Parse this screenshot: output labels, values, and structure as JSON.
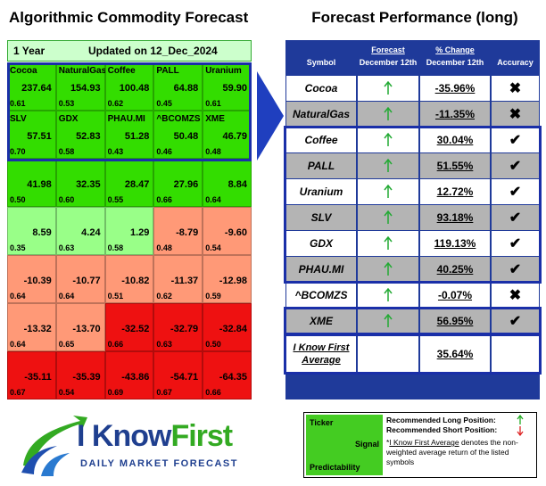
{
  "left": {
    "title": "Algorithmic Commodity Forecast",
    "horizon": "1 Year",
    "updated": "Updated on 12_Dec_2024",
    "rows": [
      [
        {
          "name": "Cocoa",
          "signal": "237.64",
          "predictability": "0.61",
          "color": "#33dd00"
        },
        {
          "name": "NaturalGas",
          "signal": "154.93",
          "predictability": "0.53",
          "color": "#33dd00"
        },
        {
          "name": "Coffee",
          "signal": "100.48",
          "predictability": "0.62",
          "color": "#33dd00"
        },
        {
          "name": "PALL",
          "signal": "64.88",
          "predictability": "0.45",
          "color": "#33dd00"
        },
        {
          "name": "Uranium",
          "signal": "59.90",
          "predictability": "0.61",
          "color": "#33dd00"
        }
      ],
      [
        {
          "name": "SLV",
          "signal": "57.51",
          "predictability": "0.70",
          "color": "#33dd00"
        },
        {
          "name": "GDX",
          "signal": "52.83",
          "predictability": "0.58",
          "color": "#33dd00"
        },
        {
          "name": "PHAU.MI",
          "signal": "51.28",
          "predictability": "0.43",
          "color": "#33dd00"
        },
        {
          "name": "^BCOMZS",
          "signal": "50.48",
          "predictability": "0.46",
          "color": "#33dd00"
        },
        {
          "name": "XME",
          "signal": "46.79",
          "predictability": "0.48",
          "color": "#33dd00"
        }
      ],
      [
        {
          "signal": "41.98",
          "predictability": "0.50",
          "color": "#33dd00"
        },
        {
          "signal": "32.35",
          "predictability": "0.60",
          "color": "#33dd00"
        },
        {
          "signal": "28.47",
          "predictability": "0.55",
          "color": "#33dd00"
        },
        {
          "signal": "27.96",
          "predictability": "0.66",
          "color": "#33dd00"
        },
        {
          "signal": "8.84",
          "predictability": "0.64",
          "color": "#33dd00"
        }
      ],
      [
        {
          "signal": "8.59",
          "predictability": "0.35",
          "color": "#99ff88"
        },
        {
          "signal": "4.24",
          "predictability": "0.63",
          "color": "#99ff88"
        },
        {
          "signal": "1.29",
          "predictability": "0.58",
          "color": "#99ff88"
        },
        {
          "signal": "-8.79",
          "predictability": "0.48",
          "color": "#ff9977"
        },
        {
          "signal": "-9.60",
          "predictability": "0.54",
          "color": "#ff9977"
        }
      ],
      [
        {
          "signal": "-10.39",
          "predictability": "0.64",
          "color": "#ff9977"
        },
        {
          "signal": "-10.77",
          "predictability": "0.64",
          "color": "#ff9977"
        },
        {
          "signal": "-10.82",
          "predictability": "0.51",
          "color": "#ff9977"
        },
        {
          "signal": "-11.37",
          "predictability": "0.62",
          "color": "#ff9977"
        },
        {
          "signal": "-12.98",
          "predictability": "0.59",
          "color": "#ff9977"
        }
      ],
      [
        {
          "signal": "-13.32",
          "predictability": "0.64",
          "color": "#ff9977"
        },
        {
          "signal": "-13.70",
          "predictability": "0.65",
          "color": "#ff9977"
        },
        {
          "signal": "-32.52",
          "predictability": "0.66",
          "color": "#ee1111"
        },
        {
          "signal": "-32.79",
          "predictability": "0.63",
          "color": "#ee1111"
        },
        {
          "signal": "-32.84",
          "predictability": "0.50",
          "color": "#ee1111"
        }
      ],
      [
        {
          "signal": "-35.11",
          "predictability": "0.67",
          "color": "#ee1111"
        },
        {
          "signal": "-35.39",
          "predictability": "0.54",
          "color": "#ee1111"
        },
        {
          "signal": "-43.86",
          "predictability": "0.69",
          "color": "#ee1111"
        },
        {
          "signal": "-54.71",
          "predictability": "0.67",
          "color": "#ee1111"
        },
        {
          "signal": "-64.35",
          "predictability": "0.66",
          "color": "#ee1111"
        }
      ]
    ]
  },
  "right": {
    "title": "Forecast Performance (long)",
    "headers": {
      "symbol": "Symbol",
      "forecast": "Forecast",
      "forecast_date": "December 12th",
      "change": "% Change",
      "change_date": "December 12th",
      "accuracy": "Accuracy"
    },
    "rows": [
      {
        "symbol": "Cocoa",
        "change": "-35.96%",
        "accuracy": "✖"
      },
      {
        "symbol": "NaturalGas",
        "change": "-11.35%",
        "accuracy": "✖"
      },
      {
        "symbol": "Coffee",
        "change": "30.04%",
        "accuracy": "✔"
      },
      {
        "symbol": "PALL",
        "change": "51.55%",
        "accuracy": "✔"
      },
      {
        "symbol": "Uranium",
        "change": "12.72%",
        "accuracy": "✔"
      },
      {
        "symbol": "SLV",
        "change": "93.18%",
        "accuracy": "✔"
      },
      {
        "symbol": "GDX",
        "change": "119.13%",
        "accuracy": "✔"
      },
      {
        "symbol": "PHAU.MI",
        "change": "40.25%",
        "accuracy": "✔"
      },
      {
        "symbol": "^BCOMZS",
        "change": "-0.07%",
        "accuracy": "✖"
      },
      {
        "symbol": "XME",
        "change": "56.95%",
        "accuracy": "✔"
      }
    ],
    "average": {
      "label_line1": "I Know First",
      "label_line2": "Average",
      "change": "35.64%"
    }
  },
  "legend": {
    "ticker": "Ticker",
    "signal": "Signal",
    "predictability": "Predictability",
    "long": "Recommended Long Position:",
    "short": "Recommended Short Position:",
    "note_mark": "*",
    "note_link": "I Know First Average",
    "note_rest": "denotes the non-weighted average return of the listed symbols"
  },
  "logo": {
    "name_a": "I Know",
    "name_b": "First",
    "tagline": "DAILY MARKET FORECAST"
  }
}
